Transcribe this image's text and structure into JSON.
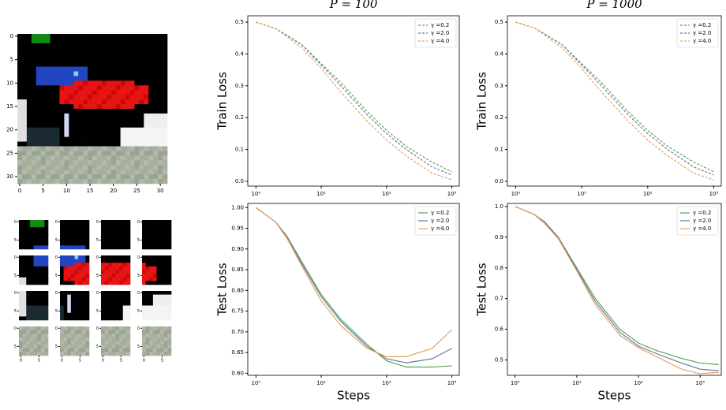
{
  "chart_data": [
    {
      "type": "image",
      "xlim": [
        -0.5,
        31.5
      ],
      "ylim": [
        31.5,
        -0.5
      ],
      "xticks": [
        0,
        5,
        10,
        15,
        20,
        25,
        30
      ],
      "yticks": [
        0,
        5,
        10,
        15,
        20,
        25,
        30
      ]
    },
    {
      "type": "image-patches",
      "xlim": [
        -0.5,
        7.5
      ],
      "ylim": [
        7.5,
        -0.5
      ],
      "xticks": [
        0,
        5
      ],
      "yticks": [
        0,
        5
      ]
    },
    {
      "type": "line",
      "title": "P = 100",
      "ylabel": "Train Loss",
      "log_x": true,
      "dashed": true,
      "legend": "upper right",
      "x": [
        1,
        2,
        5,
        10,
        20,
        50,
        100,
        200,
        500,
        1000
      ],
      "xlim": [
        0.75,
        1300
      ],
      "xticks": [
        {
          "value": 1,
          "label": "10⁰"
        },
        {
          "value": 10,
          "label": "10¹"
        },
        {
          "value": 100,
          "label": "10²"
        },
        {
          "value": 1000,
          "label": "10³"
        }
      ],
      "ylim": [
        -0.015,
        0.52
      ],
      "yticks": [
        {
          "value": 0,
          "label": "0.0"
        },
        0.1,
        0.2,
        0.3,
        0.4,
        0.5
      ],
      "series": [
        {
          "name": "γ =0.2",
          "color": "#5aa55a",
          "values": [
            0.5,
            0.48,
            0.43,
            0.37,
            0.31,
            0.22,
            0.16,
            0.11,
            0.06,
            0.03
          ]
        },
        {
          "name": "γ =2.0",
          "color": "#6a7a9a",
          "values": [
            0.5,
            0.48,
            0.43,
            0.365,
            0.3,
            0.21,
            0.15,
            0.1,
            0.045,
            0.02
          ]
        },
        {
          "name": "γ =4.0",
          "color": "#e8a060",
          "values": [
            0.5,
            0.48,
            0.42,
            0.355,
            0.28,
            0.19,
            0.13,
            0.08,
            0.025,
            0.005
          ]
        }
      ]
    },
    {
      "type": "line",
      "title": "P = 1000",
      "ylabel": "Train Loss",
      "log_x": true,
      "dashed": true,
      "legend": "upper right",
      "x": [
        1,
        2,
        5,
        10,
        20,
        50,
        100,
        200,
        500,
        1000
      ],
      "xlim": [
        0.75,
        1300
      ],
      "xticks": [
        {
          "value": 1,
          "label": "10⁰"
        },
        {
          "value": 10,
          "label": "10¹"
        },
        {
          "value": 100,
          "label": "10²"
        },
        {
          "value": 1000,
          "label": "10³"
        }
      ],
      "ylim": [
        -0.015,
        0.52
      ],
      "yticks": [
        {
          "value": 0,
          "label": "0.0"
        },
        0.1,
        0.2,
        0.3,
        0.4,
        0.5
      ],
      "series": [
        {
          "name": "γ =0.2",
          "color": "#5aa55a",
          "values": [
            0.5,
            0.48,
            0.43,
            0.37,
            0.31,
            0.22,
            0.16,
            0.11,
            0.06,
            0.03
          ]
        },
        {
          "name": "γ =2.0",
          "color": "#6a7a9a",
          "values": [
            0.5,
            0.48,
            0.43,
            0.365,
            0.3,
            0.21,
            0.15,
            0.1,
            0.045,
            0.02
          ]
        },
        {
          "name": "γ =4.0",
          "color": "#e8a060",
          "values": [
            0.5,
            0.48,
            0.42,
            0.355,
            0.28,
            0.19,
            0.13,
            0.08,
            0.025,
            0.005
          ]
        }
      ]
    },
    {
      "type": "line",
      "ylabel": "Test Loss",
      "xlabel": "Steps",
      "log_x": true,
      "dashed": false,
      "legend": "upper right",
      "x": [
        1,
        2,
        3,
        5,
        10,
        20,
        50,
        100,
        200,
        500,
        1000
      ],
      "xlim": [
        0.75,
        1300
      ],
      "xticks": [
        {
          "value": 1,
          "label": "10⁰"
        },
        {
          "value": 10,
          "label": "10¹"
        },
        {
          "value": 100,
          "label": "10²"
        },
        {
          "value": 1000,
          "label": "10³"
        }
      ],
      "ylim": [
        0.595,
        1.01
      ],
      "yticks": [
        {
          "value": 0.6,
          "label": "0.60"
        },
        0.65,
        {
          "value": 0.7,
          "label": "0.70"
        },
        0.75,
        {
          "value": 0.8,
          "label": "0.80"
        },
        0.85,
        {
          "value": 0.9,
          "label": "0.90"
        },
        0.95,
        {
          "value": 1,
          "label": "1.00"
        }
      ],
      "series": [
        {
          "name": "γ =0.2",
          "color": "#5aa55a",
          "values": [
            1.0,
            0.965,
            0.93,
            0.87,
            0.79,
            0.73,
            0.67,
            0.63,
            0.615,
            0.615,
            0.618
          ]
        },
        {
          "name": "γ =2.0",
          "color": "#6a7a9a",
          "values": [
            1.0,
            0.965,
            0.93,
            0.865,
            0.785,
            0.725,
            0.665,
            0.635,
            0.625,
            0.635,
            0.66
          ]
        },
        {
          "name": "γ =4.0",
          "color": "#e8a060",
          "values": [
            1.0,
            0.965,
            0.925,
            0.86,
            0.775,
            0.715,
            0.66,
            0.64,
            0.64,
            0.66,
            0.705
          ]
        }
      ]
    },
    {
      "type": "line",
      "ylabel": "Test Loss",
      "xlabel": "Steps",
      "log_x": true,
      "dashed": false,
      "legend": "upper right",
      "x": [
        1,
        2,
        3,
        5,
        10,
        20,
        50,
        100,
        200,
        500,
        1000,
        2000
      ],
      "xlim": [
        0.75,
        2200
      ],
      "xticks": [
        {
          "value": 1,
          "label": "10⁰"
        },
        {
          "value": 10,
          "label": "10¹"
        },
        {
          "value": 100,
          "label": "10²"
        },
        {
          "value": 1000,
          "label": "10³"
        }
      ],
      "ylim": [
        0.45,
        1.01
      ],
      "yticks": [
        0.5,
        0.6,
        0.7,
        0.8,
        0.9,
        {
          "value": 1,
          "label": "1.0"
        }
      ],
      "series": [
        {
          "name": "γ =0.2",
          "color": "#5aa55a",
          "values": [
            1.0,
            0.975,
            0.95,
            0.9,
            0.8,
            0.7,
            0.6,
            0.555,
            0.53,
            0.505,
            0.49,
            0.485
          ]
        },
        {
          "name": "γ =2.0",
          "color": "#6a7a9a",
          "values": [
            1.0,
            0.975,
            0.95,
            0.9,
            0.795,
            0.69,
            0.59,
            0.545,
            0.52,
            0.49,
            0.47,
            0.465
          ]
        },
        {
          "name": "γ =4.0",
          "color": "#e8a060",
          "values": [
            1.0,
            0.975,
            0.945,
            0.895,
            0.79,
            0.68,
            0.58,
            0.54,
            0.51,
            0.47,
            0.455,
            0.46
          ]
        }
      ]
    }
  ]
}
